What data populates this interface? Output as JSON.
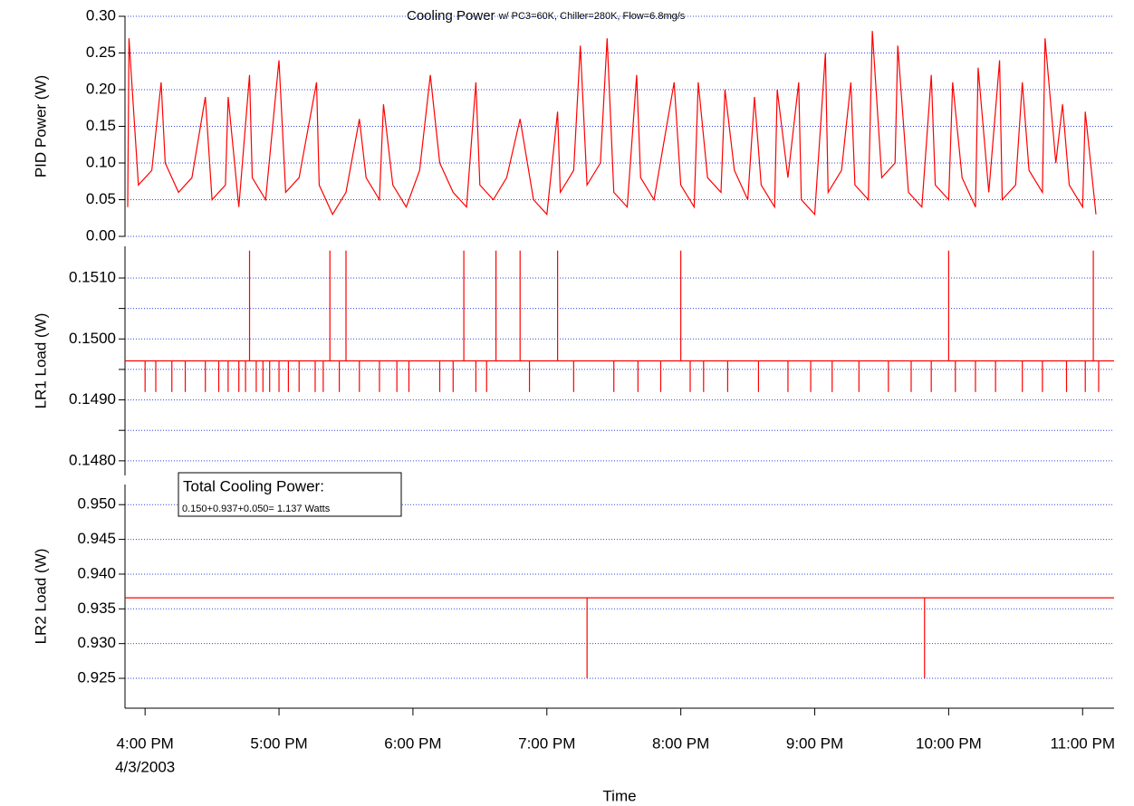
{
  "chart_data": [
    {
      "type": "line",
      "title": "Cooling Power",
      "subtitle": "w/ PC3=60K, Chiller=280K, Flow=6.8mg/s",
      "ylabel": "PID Power (W)",
      "color": "#ff0000",
      "xlim": [
        15.85,
        23.235
      ],
      "ylim": [
        0,
        0.3
      ],
      "grid": true,
      "yticks": [
        {
          "value": 0,
          "label": "0.00"
        },
        0.05,
        {
          "value": 0.1,
          "label": "0.10"
        },
        0.15,
        {
          "value": 0.2,
          "label": "0.20"
        },
        0.25,
        {
          "value": 0.3,
          "label": "0.30"
        }
      ],
      "x": [
        15.87,
        15.88,
        15.95,
        16.05,
        16.12,
        16.15,
        16.25,
        16.35,
        16.45,
        16.5,
        16.6,
        16.62,
        16.7,
        16.78,
        16.8,
        16.9,
        17.0,
        17.05,
        17.15,
        17.28,
        17.3,
        17.4,
        17.5,
        17.6,
        17.65,
        17.75,
        17.78,
        17.85,
        17.95,
        18.05,
        18.13,
        18.2,
        18.3,
        18.4,
        18.47,
        18.5,
        18.6,
        18.7,
        18.8,
        18.9,
        19.0,
        19.08,
        19.1,
        19.2,
        19.25,
        19.3,
        19.4,
        19.45,
        19.5,
        19.6,
        19.67,
        19.7,
        19.8,
        19.95,
        20.0,
        20.1,
        20.13,
        20.2,
        20.3,
        20.33,
        20.4,
        20.5,
        20.55,
        20.6,
        20.7,
        20.72,
        20.8,
        20.88,
        20.9,
        21.0,
        21.08,
        21.1,
        21.2,
        21.27,
        21.3,
        21.4,
        21.43,
        21.5,
        21.6,
        21.62,
        21.7,
        21.8,
        21.87,
        21.9,
        22.0,
        22.03,
        22.1,
        22.2,
        22.22,
        22.3,
        22.38,
        22.4,
        22.5,
        22.55,
        22.6,
        22.7,
        22.72,
        22.8,
        22.85,
        22.9,
        23.0,
        23.02,
        23.1
      ],
      "values": [
        0.04,
        0.27,
        0.07,
        0.09,
        0.21,
        0.1,
        0.06,
        0.08,
        0.19,
        0.05,
        0.07,
        0.19,
        0.04,
        0.22,
        0.08,
        0.05,
        0.24,
        0.06,
        0.08,
        0.21,
        0.07,
        0.03,
        0.06,
        0.16,
        0.08,
        0.05,
        0.18,
        0.07,
        0.04,
        0.09,
        0.22,
        0.1,
        0.06,
        0.04,
        0.21,
        0.07,
        0.05,
        0.08,
        0.16,
        0.05,
        0.03,
        0.17,
        0.06,
        0.09,
        0.26,
        0.07,
        0.1,
        0.27,
        0.06,
        0.04,
        0.22,
        0.08,
        0.05,
        0.21,
        0.07,
        0.04,
        0.21,
        0.08,
        0.06,
        0.2,
        0.09,
        0.05,
        0.19,
        0.07,
        0.04,
        0.2,
        0.08,
        0.21,
        0.05,
        0.03,
        0.25,
        0.06,
        0.09,
        0.21,
        0.07,
        0.05,
        0.28,
        0.08,
        0.1,
        0.26,
        0.06,
        0.04,
        0.22,
        0.07,
        0.05,
        0.21,
        0.08,
        0.04,
        0.23,
        0.06,
        0.24,
        0.05,
        0.07,
        0.21,
        0.09,
        0.06,
        0.27,
        0.1,
        0.18,
        0.07,
        0.04,
        0.17,
        0.03
      ]
    },
    {
      "type": "stem",
      "ylabel": "LR1 Load (W)",
      "color": "#ff0000",
      "baseline": 0.14964,
      "xlim": [
        15.85,
        23.235
      ],
      "ylim": [
        0.14776,
        0.15152
      ],
      "grid": true,
      "yticks": [
        {
          "value": 0.148,
          "label": "0.1480"
        },
        {
          "value": 0.149,
          "label": "0.1490"
        },
        {
          "value": 0.15,
          "label": "0.1500"
        },
        {
          "value": 0.151,
          "label": "0.1510"
        }
      ],
      "minor_yticks": [
        0.1485,
        0.1495,
        0.1505
      ],
      "x": [
        16.0,
        16.08,
        16.2,
        16.3,
        16.45,
        16.55,
        16.62,
        16.7,
        16.75,
        16.78,
        16.83,
        16.88,
        16.93,
        17.0,
        17.07,
        17.15,
        17.27,
        17.33,
        17.38,
        17.45,
        17.5,
        17.6,
        17.75,
        17.88,
        17.97,
        18.2,
        18.3,
        18.38,
        18.47,
        18.55,
        18.62,
        18.8,
        18.87,
        19.08,
        19.2,
        19.5,
        19.68,
        19.85,
        20.0,
        20.07,
        20.17,
        20.35,
        20.58,
        20.8,
        20.97,
        21.13,
        21.33,
        21.55,
        21.72,
        21.87,
        22.0,
        22.05,
        22.2,
        22.35,
        22.55,
        22.7,
        22.88,
        23.02,
        23.08,
        23.12
      ],
      "values": [
        0.14913,
        0.14913,
        0.14913,
        0.14913,
        0.14913,
        0.14913,
        0.14913,
        0.14913,
        0.14913,
        0.15145,
        0.14913,
        0.14913,
        0.14913,
        0.14913,
        0.14913,
        0.14913,
        0.14913,
        0.14913,
        0.15145,
        0.14913,
        0.15145,
        0.14913,
        0.14913,
        0.14913,
        0.14913,
        0.14913,
        0.14913,
        0.15145,
        0.14913,
        0.14913,
        0.15145,
        0.15145,
        0.14913,
        0.15145,
        0.14913,
        0.14913,
        0.14913,
        0.14913,
        0.15145,
        0.14913,
        0.14913,
        0.14913,
        0.14913,
        0.14913,
        0.14913,
        0.14913,
        0.14913,
        0.14913,
        0.14913,
        0.14913,
        0.15145,
        0.14913,
        0.14913,
        0.14913,
        0.14913,
        0.14913,
        0.14913,
        0.14913,
        0.15145,
        0.14913
      ]
    },
    {
      "type": "stem",
      "ylabel": "LR2 Load (W)",
      "xlabel": "Time",
      "color": "#ff0000",
      "baseline": 0.93659,
      "annotation_title": "Total Cooling Power:",
      "annotation_text": "0.150+0.937+0.050= 1.137 Watts",
      "xlim": [
        15.85,
        23.235
      ],
      "ylim": [
        0.9207,
        0.9529
      ],
      "grid": true,
      "yticks": [
        0.925,
        {
          "value": 0.93,
          "label": "0.930"
        },
        0.935,
        {
          "value": 0.94,
          "label": "0.940"
        },
        0.945,
        {
          "value": 0.95,
          "label": "0.950"
        }
      ],
      "xticks": [
        {
          "value": 16,
          "label": "4:00 PM"
        },
        {
          "value": 17,
          "label": "5:00 PM"
        },
        {
          "value": 18,
          "label": "6:00 PM"
        },
        {
          "value": 19,
          "label": "7:00 PM"
        },
        {
          "value": 20,
          "label": "8:00 PM"
        },
        {
          "value": 21,
          "label": "9:00 PM"
        },
        {
          "value": 22,
          "label": "10:00 PM"
        },
        {
          "value": 23,
          "label": "11:00 PM"
        }
      ],
      "x_date_label": "4/3/2003",
      "x": [
        19.3,
        21.82
      ],
      "values": [
        0.925,
        0.925
      ]
    }
  ]
}
